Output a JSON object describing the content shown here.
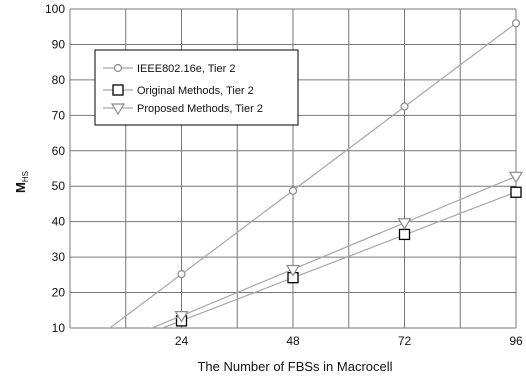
{
  "chart_data": {
    "type": "line",
    "title": "",
    "xlabel": "The Number of FBSs in Macrocell",
    "ylabel": "M",
    "ylabel_sub": "HS",
    "x": [
      24,
      48,
      72,
      96
    ],
    "xlim": [
      0,
      96
    ],
    "ylim": [
      10,
      100
    ],
    "xticks": [
      "24",
      "48",
      "72",
      "96"
    ],
    "yticks": [
      "10",
      "20",
      "30",
      "40",
      "50",
      "60",
      "70",
      "80",
      "90",
      "100"
    ],
    "grid": true,
    "legend_position": "top-left",
    "colors": {
      "line": "#a6a6a6",
      "marker": "#000000",
      "grid": "#777777",
      "axis": "#444444"
    },
    "series": [
      {
        "name": "IEEE802.16e, Tier 2",
        "marker": "circle",
        "values": [
          25.2,
          48.7,
          72.5,
          96
        ]
      },
      {
        "name": "Original Methods, Tier 2",
        "marker": "square",
        "values": [
          12.0,
          24.2,
          36.4,
          48.3
        ]
      },
      {
        "name": "Proposed Methods, Tier 2",
        "marker": "triangle-down",
        "values": [
          13.5,
          26.5,
          39.7,
          52.8
        ]
      }
    ]
  }
}
